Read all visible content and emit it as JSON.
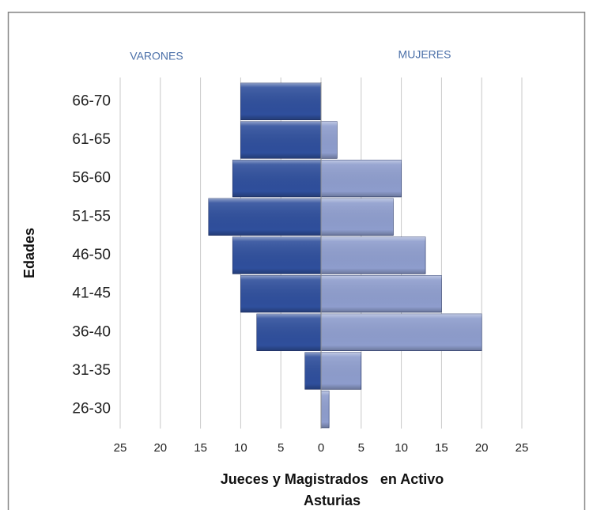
{
  "chart_data": {
    "type": "pyramid",
    "ylabel": "Edades",
    "xlabel_lines": [
      "Jueces y Magistrados   en Activo",
      "Asturias"
    ],
    "categories": [
      "66-70",
      "61-65",
      "56-60",
      "51-55",
      "46-50",
      "41-45",
      "36-40",
      "31-35",
      "26-30"
    ],
    "series": [
      {
        "name": "VARONES",
        "color": "#2f4f9c",
        "values": [
          -10,
          -10,
          -11,
          -14,
          -11,
          -10,
          -8,
          -2,
          0
        ]
      },
      {
        "name": "MUJERES",
        "color": "#8e9dcd",
        "values": [
          0,
          2,
          10,
          9,
          13,
          15,
          20,
          5,
          1
        ]
      }
    ],
    "xlim": [
      -25,
      25
    ],
    "xticks": [
      {
        "value": -25,
        "label": "25"
      },
      {
        "value": -20,
        "label": "20"
      },
      {
        "value": -15,
        "label": "15"
      },
      {
        "value": -10,
        "label": "10"
      },
      {
        "value": -5,
        "label": "5"
      },
      0,
      5,
      10,
      15,
      20,
      25
    ],
    "grid": true
  }
}
